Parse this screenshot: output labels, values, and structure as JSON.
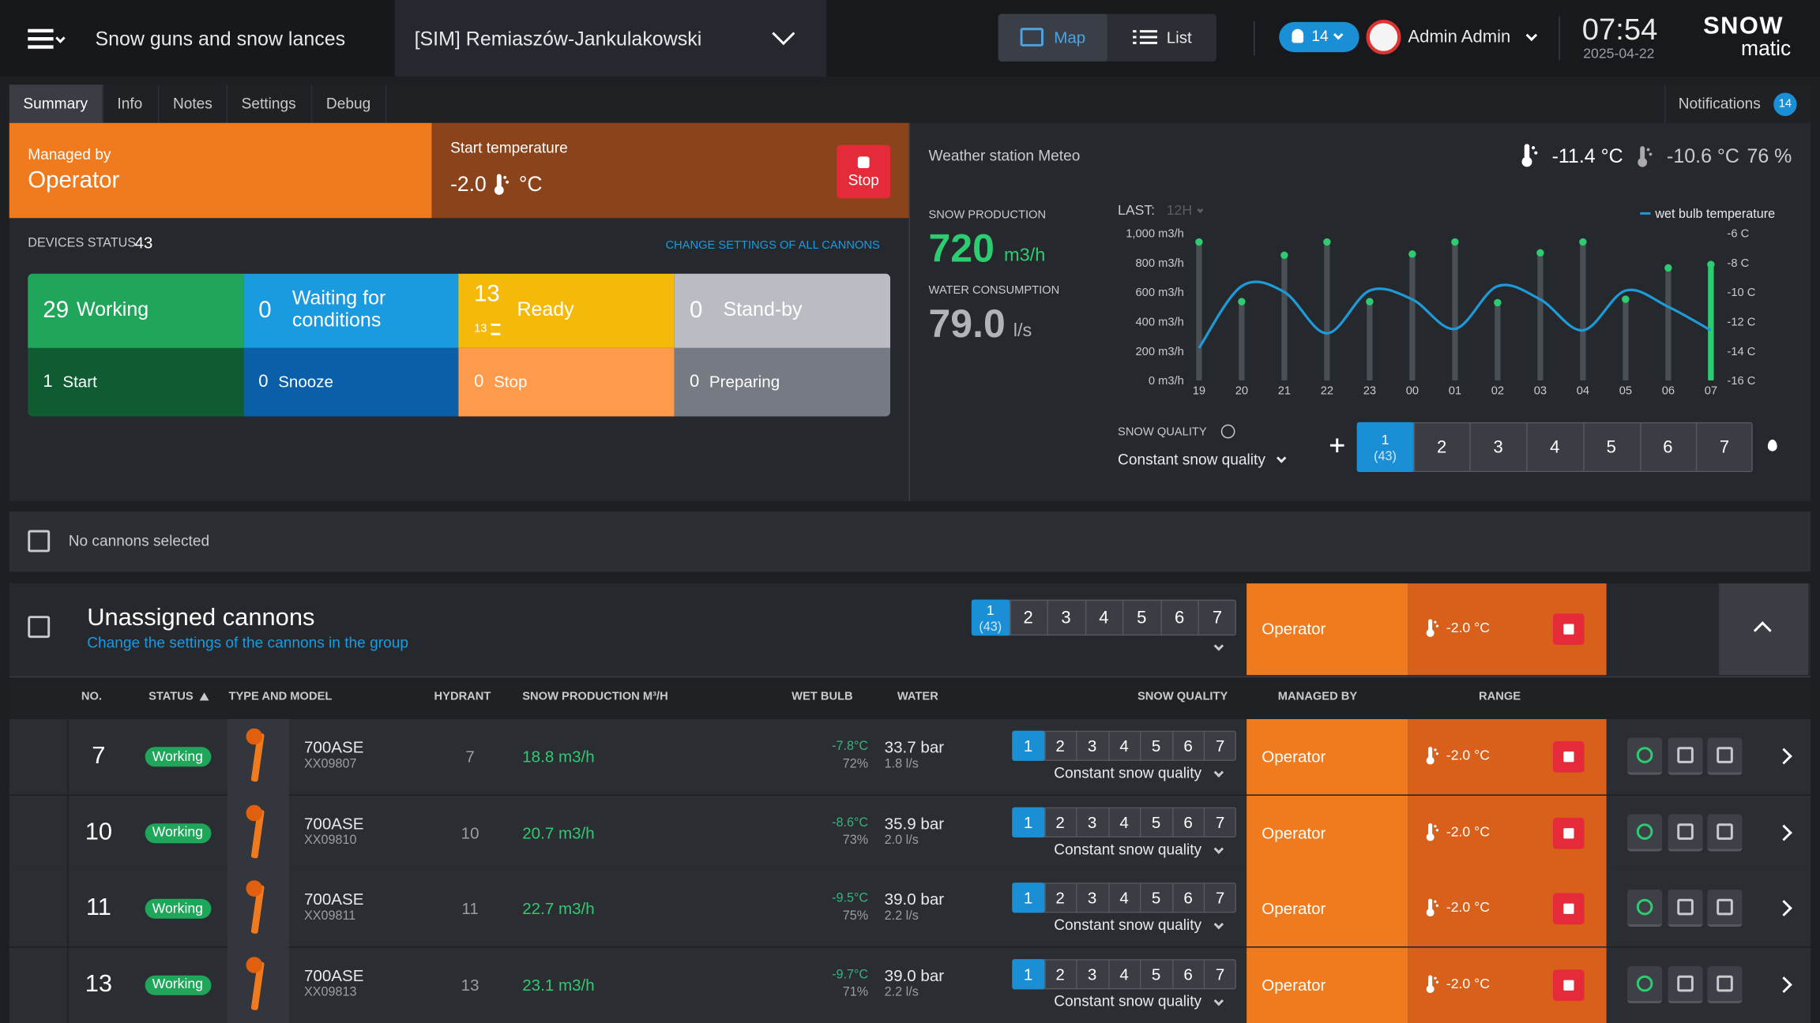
{
  "header": {
    "title": "Snow guns and snow lances",
    "site": "[SIM] Remiaszów-Jankulakowski",
    "map": "Map",
    "list": "List",
    "alerts": "14",
    "user": "Admin Admin",
    "time": "07:54",
    "date": "2025-04-22",
    "logo_top": "SNOW",
    "logo_bottom": "matic"
  },
  "tabs": [
    "Summary",
    "Info",
    "Notes",
    "Settings",
    "Debug"
  ],
  "notifications": {
    "label": "Notifications",
    "count": "14"
  },
  "control": {
    "managed_label": "Managed by",
    "managed_value": "Operator",
    "start_temp_label": "Start temperature",
    "start_temp_value": "-2.0",
    "start_temp_unit": "°C",
    "stop": "Stop"
  },
  "devices": {
    "label": "DEVICES STATUS",
    "count": "43",
    "change_link": "CHANGE SETTINGS OF ALL CANNONS",
    "tiles": [
      {
        "count": "29",
        "label": "Working"
      },
      {
        "count": "0",
        "label": "Waiting for conditions"
      },
      {
        "count": "13",
        "label": "Ready",
        "sub": "13"
      },
      {
        "count": "0",
        "label": "Stand-by"
      },
      {
        "count": "1",
        "label": "Start"
      },
      {
        "count": "0",
        "label": "Snooze"
      },
      {
        "count": "0",
        "label": "Stop"
      },
      {
        "count": "0",
        "label": "Preparing"
      }
    ]
  },
  "weather": {
    "station": "Weather station Meteo",
    "temp": "-11.4 °C",
    "wet": "-10.6 °C",
    "humidity": "76 %",
    "snow_production_label": "SNOW PRODUCTION",
    "snow_production": "720",
    "snow_production_unit": "m3/h",
    "water_label": "WATER CONSUMPTION",
    "water": "79.0",
    "water_unit": "l/s",
    "last_label": "LAST:",
    "last_value": "12H"
  },
  "snow_quality": {
    "label": "SNOW QUALITY",
    "mode": "Constant snow quality",
    "levels": [
      "1",
      "2",
      "3",
      "4",
      "5",
      "6",
      "7"
    ],
    "selected_count": "(43)"
  },
  "chart_data": {
    "type": "bar",
    "categories": [
      "19",
      "20",
      "21",
      "22",
      "23",
      "00",
      "01",
      "02",
      "03",
      "04",
      "05",
      "06",
      "07"
    ],
    "series": [
      {
        "type": "bar",
        "color": "#4a4e55",
        "values": [
          940,
          535,
          850,
          940,
          535,
          858,
          940,
          528,
          866,
          940,
          551,
          764,
          787
        ]
      },
      {
        "name": "wet bulb temperature",
        "type": "line",
        "axis": "y2",
        "color": "#1e9ad6",
        "values": [
          -13.8,
          -9.6,
          -10.0,
          -12.8,
          -9.9,
          -10.5,
          -12.5,
          -9.6,
          -10.5,
          -12.6,
          -9.9,
          -11.0,
          -12.6
        ]
      }
    ],
    "ylim": [
      0,
      1000
    ],
    "yticks": [
      {
        "value": 0,
        "label": "0 m3/h"
      },
      {
        "value": 200,
        "label": "200 m3/h"
      },
      {
        "value": 400,
        "label": "400 m3/h"
      },
      {
        "value": 600,
        "label": "600 m3/h"
      },
      {
        "value": 800,
        "label": "800 m3/h"
      },
      {
        "value": 1000,
        "label": "1,000 m3/h"
      }
    ],
    "y2lim": [
      -16,
      -6
    ],
    "y2ticks": [
      {
        "value": -6,
        "label": "-6 C"
      },
      {
        "value": -8,
        "label": "-8 C"
      },
      {
        "value": -10,
        "label": "-10 C"
      },
      {
        "value": -12,
        "label": "-12 C"
      },
      {
        "value": -14,
        "label": "-14 C"
      },
      {
        "value": -16,
        "label": "-16 C"
      }
    ],
    "legend": "top-right"
  },
  "selection": {
    "label": "No cannons selected"
  },
  "group": {
    "title": "Unassigned cannons",
    "subtitle": "Change the settings of the cannons in the group",
    "managed": "Operator",
    "temp": "-2.0 °C"
  },
  "table": {
    "headers": [
      "NO.",
      "STATUS",
      "TYPE AND MODEL",
      "HYDRANT",
      "SNOW PRODUCTION M³/H",
      "WET BULB",
      "WATER",
      "SNOW QUALITY",
      "MANAGED BY",
      "RANGE"
    ],
    "rows": [
      {
        "no": "7",
        "status": "Working",
        "model": "700ASE",
        "serial": "XX09807",
        "hydrant": "7",
        "production": "18.8 m3/h",
        "wet_bulb": "-7.8°C",
        "humidity": "72%",
        "pressure": "33.7 bar",
        "water": "1.8 l/s",
        "managed": "Operator",
        "temp": "-2.0 °C"
      },
      {
        "no": "10",
        "status": "Working",
        "model": "700ASE",
        "serial": "XX09810",
        "hydrant": "10",
        "production": "20.7 m3/h",
        "wet_bulb": "-8.6°C",
        "humidity": "73%",
        "pressure": "35.9 bar",
        "water": "2.0 l/s",
        "managed": "Operator",
        "temp": "-2.0 °C"
      },
      {
        "no": "11",
        "status": "Working",
        "model": "700ASE",
        "serial": "XX09811",
        "hydrant": "11",
        "production": "22.7 m3/h",
        "wet_bulb": "-9.5°C",
        "humidity": "75%",
        "pressure": "39.0 bar",
        "water": "2.2 l/s",
        "managed": "Operator",
        "temp": "-2.0 °C"
      },
      {
        "no": "13",
        "status": "Working",
        "model": "700ASE",
        "serial": "XX09813",
        "hydrant": "13",
        "production": "23.1 m3/h",
        "wet_bulb": "-9.7°C",
        "humidity": "71%",
        "pressure": "39.0 bar",
        "water": "2.2 l/s",
        "managed": "Operator",
        "temp": "-2.0 °C"
      }
    ]
  }
}
